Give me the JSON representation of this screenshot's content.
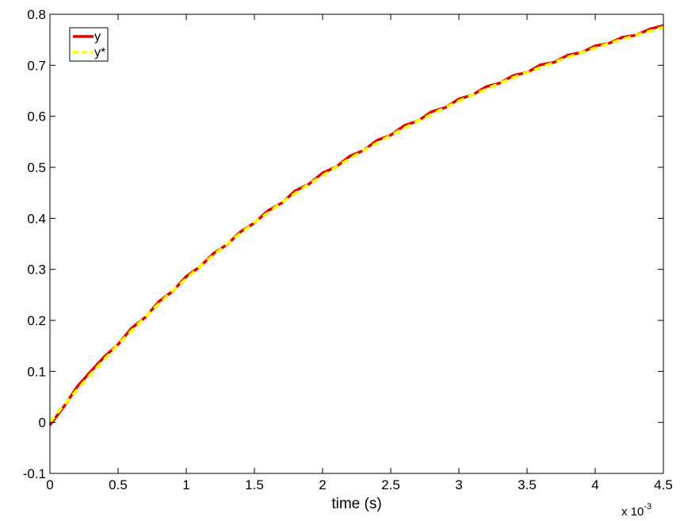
{
  "chart_data": {
    "type": "line",
    "x_label": "time (s)",
    "x_multiplier": {
      "base": "x 10",
      "exponent": "-3"
    },
    "x": [
      0,
      0.1,
      0.2,
      0.3,
      0.4,
      0.5,
      0.6,
      0.7,
      0.8,
      0.9,
      1.0,
      1.1,
      1.2,
      1.3,
      1.4,
      1.5,
      1.6,
      1.7,
      1.8,
      1.9,
      2.0,
      2.1,
      2.2,
      2.3,
      2.4,
      2.5,
      2.6,
      2.7,
      2.8,
      2.9,
      3.0,
      3.1,
      3.2,
      3.3,
      3.4,
      3.5,
      3.6,
      3.7,
      3.8,
      3.9,
      4.0,
      4.1,
      4.2,
      4.3,
      4.4,
      4.5
    ],
    "series": [
      {
        "name": "y",
        "color": "#e00000",
        "dash": false,
        "values": [
          -0.005,
          0.03,
          0.07,
          0.1,
          0.129,
          0.153,
          0.185,
          0.206,
          0.237,
          0.257,
          0.286,
          0.305,
          0.331,
          0.349,
          0.374,
          0.391,
          0.415,
          0.43,
          0.454,
          0.467,
          0.489,
          0.501,
          0.522,
          0.533,
          0.553,
          0.563,
          0.582,
          0.591,
          0.609,
          0.617,
          0.634,
          0.642,
          0.658,
          0.665,
          0.68,
          0.686,
          0.701,
          0.706,
          0.72,
          0.725,
          0.738,
          0.743,
          0.755,
          0.759,
          0.771,
          0.778
        ]
      },
      {
        "name": "y*",
        "color": "#ffff00",
        "dash": true,
        "values": [
          0,
          0.033,
          0.064,
          0.095,
          0.124,
          0.153,
          0.18,
          0.207,
          0.233,
          0.258,
          0.282,
          0.305,
          0.328,
          0.35,
          0.371,
          0.392,
          0.411,
          0.431,
          0.449,
          0.467,
          0.484,
          0.501,
          0.517,
          0.533,
          0.548,
          0.563,
          0.577,
          0.591,
          0.604,
          0.617,
          0.63,
          0.642,
          0.653,
          0.665,
          0.676,
          0.686,
          0.696,
          0.706,
          0.716,
          0.725,
          0.734,
          0.743,
          0.751,
          0.759,
          0.767,
          0.775
        ]
      }
    ],
    "xlim": [
      0,
      4.5
    ],
    "xticks": [
      0,
      0.5,
      1,
      1.5,
      2,
      2.5,
      3,
      3.5,
      4,
      4.5
    ],
    "ylim": [
      -0.1,
      0.8
    ],
    "yticks": [
      -0.1,
      0,
      0.1,
      0.2,
      0.3,
      0.4,
      0.5,
      0.6,
      0.7,
      0.8
    ],
    "grid": false,
    "legend": "top-left"
  }
}
